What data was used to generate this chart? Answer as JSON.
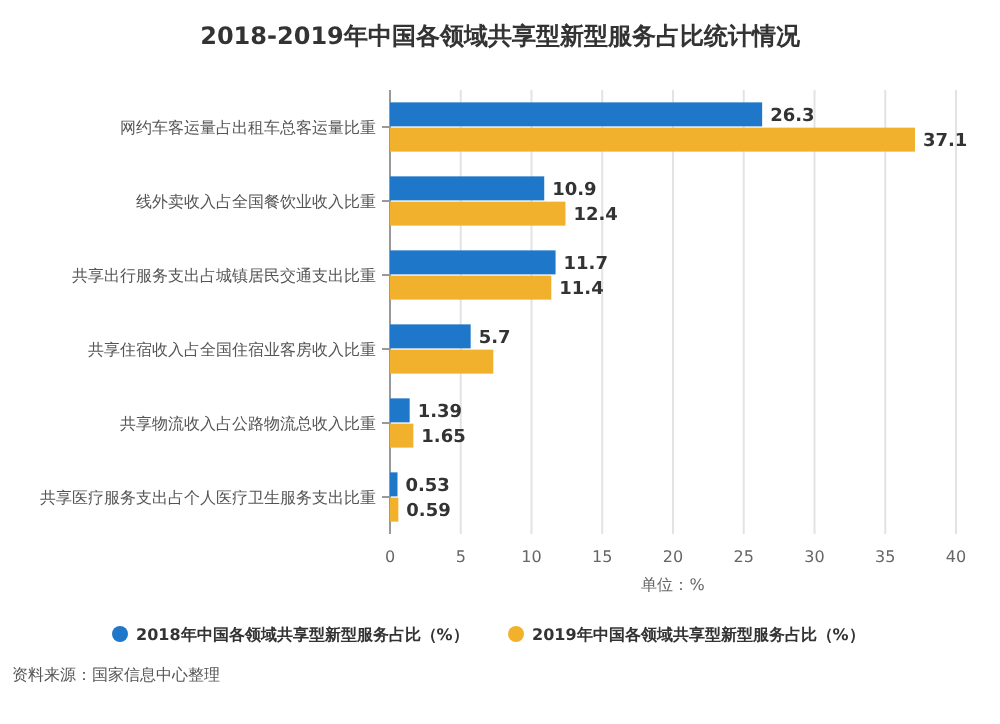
{
  "chart_data": {
    "type": "bar",
    "orientation": "horizontal",
    "title": "2018-2019年中国各领域共享型新型服务占比统计情况",
    "xlabel": "单位：%",
    "categories": [
      "网约车客运量占出租车总客运量比重",
      "线外卖收入占全国餐饮业收入比重",
      "共享出行服务支出占城镇居民交通支出比重",
      "共享住宿收入占全国住宿业客房收入比重",
      "共享物流收入占公路物流总收入比重",
      "共享医疗服务支出占个人医疗卫生服务支出比重"
    ],
    "series": [
      {
        "name": "2018年中国各领域共享型新型服务占比（%）",
        "color": "#1f77c9",
        "values": [
          26.3,
          10.9,
          11.7,
          5.7,
          1.39,
          0.53
        ],
        "value_labels": [
          "26.3",
          "10.9",
          "11.7",
          "5.7",
          "1.39",
          "0.53"
        ]
      },
      {
        "name": "2019年中国各领域共享型新型服务占比（%）",
        "color": "#f2b12c",
        "values": [
          37.1,
          12.4,
          11.4,
          7.3,
          1.65,
          0.59
        ],
        "value_labels": [
          "37.1",
          "12.4",
          "11.4",
          null,
          "1.65",
          "0.59"
        ]
      }
    ],
    "xlim": [
      0,
      40
    ],
    "xticks": [
      0,
      5,
      10,
      15,
      20,
      25,
      30,
      35,
      40
    ],
    "grid": "x",
    "legend": "bottom",
    "annotations": [
      "资料来源：国家信息中心整理"
    ]
  }
}
